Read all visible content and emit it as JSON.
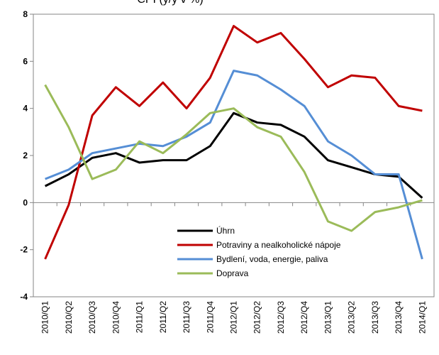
{
  "chart_data": {
    "type": "line",
    "title": "CPI (y/y v %)",
    "categories": [
      "2010/Q1",
      "2010/Q2",
      "2010/Q3",
      "2010/Q4",
      "2011/Q1",
      "2011/Q2",
      "2011/Q3",
      "2011/Q4",
      "2012/Q1",
      "2012/Q2",
      "2012/Q3",
      "2012/Q4",
      "2013/Q1",
      "2013/Q2",
      "2013/Q3",
      "2013/Q4",
      "2014/Q1"
    ],
    "series": [
      {
        "name": "Úhrn",
        "color": "#000000",
        "values": [
          0.7,
          1.2,
          1.9,
          2.1,
          1.7,
          1.8,
          1.8,
          2.4,
          3.8,
          3.4,
          3.3,
          2.8,
          1.8,
          1.5,
          1.2,
          1.1,
          0.2
        ]
      },
      {
        "name": "Potraviny a nealkoholické nápoje",
        "color": "#c00000",
        "values": [
          -2.4,
          -0.1,
          3.7,
          4.9,
          4.1,
          5.1,
          4.0,
          5.3,
          7.5,
          6.8,
          7.2,
          6.1,
          4.9,
          5.4,
          5.3,
          4.1,
          3.9
        ]
      },
      {
        "name": "Bydlení, voda, energie, paliva",
        "color": "#558ed5",
        "values": [
          1.0,
          1.4,
          2.1,
          2.3,
          2.5,
          2.4,
          2.8,
          3.4,
          5.6,
          5.4,
          4.8,
          4.1,
          2.6,
          2.0,
          1.2,
          1.2,
          -2.4
        ]
      },
      {
        "name": "Doprava",
        "color": "#9bbb59",
        "values": [
          5.0,
          3.2,
          1.0,
          1.4,
          2.6,
          2.1,
          2.9,
          3.8,
          4.0,
          3.2,
          2.8,
          1.3,
          -0.8,
          -1.2,
          -0.4,
          -0.2,
          0.1
        ]
      }
    ],
    "ylim": [
      -4,
      8
    ],
    "yticks": [
      -4,
      -2,
      0,
      2,
      4,
      6,
      8
    ],
    "grid": false,
    "legend": "lower-center"
  }
}
